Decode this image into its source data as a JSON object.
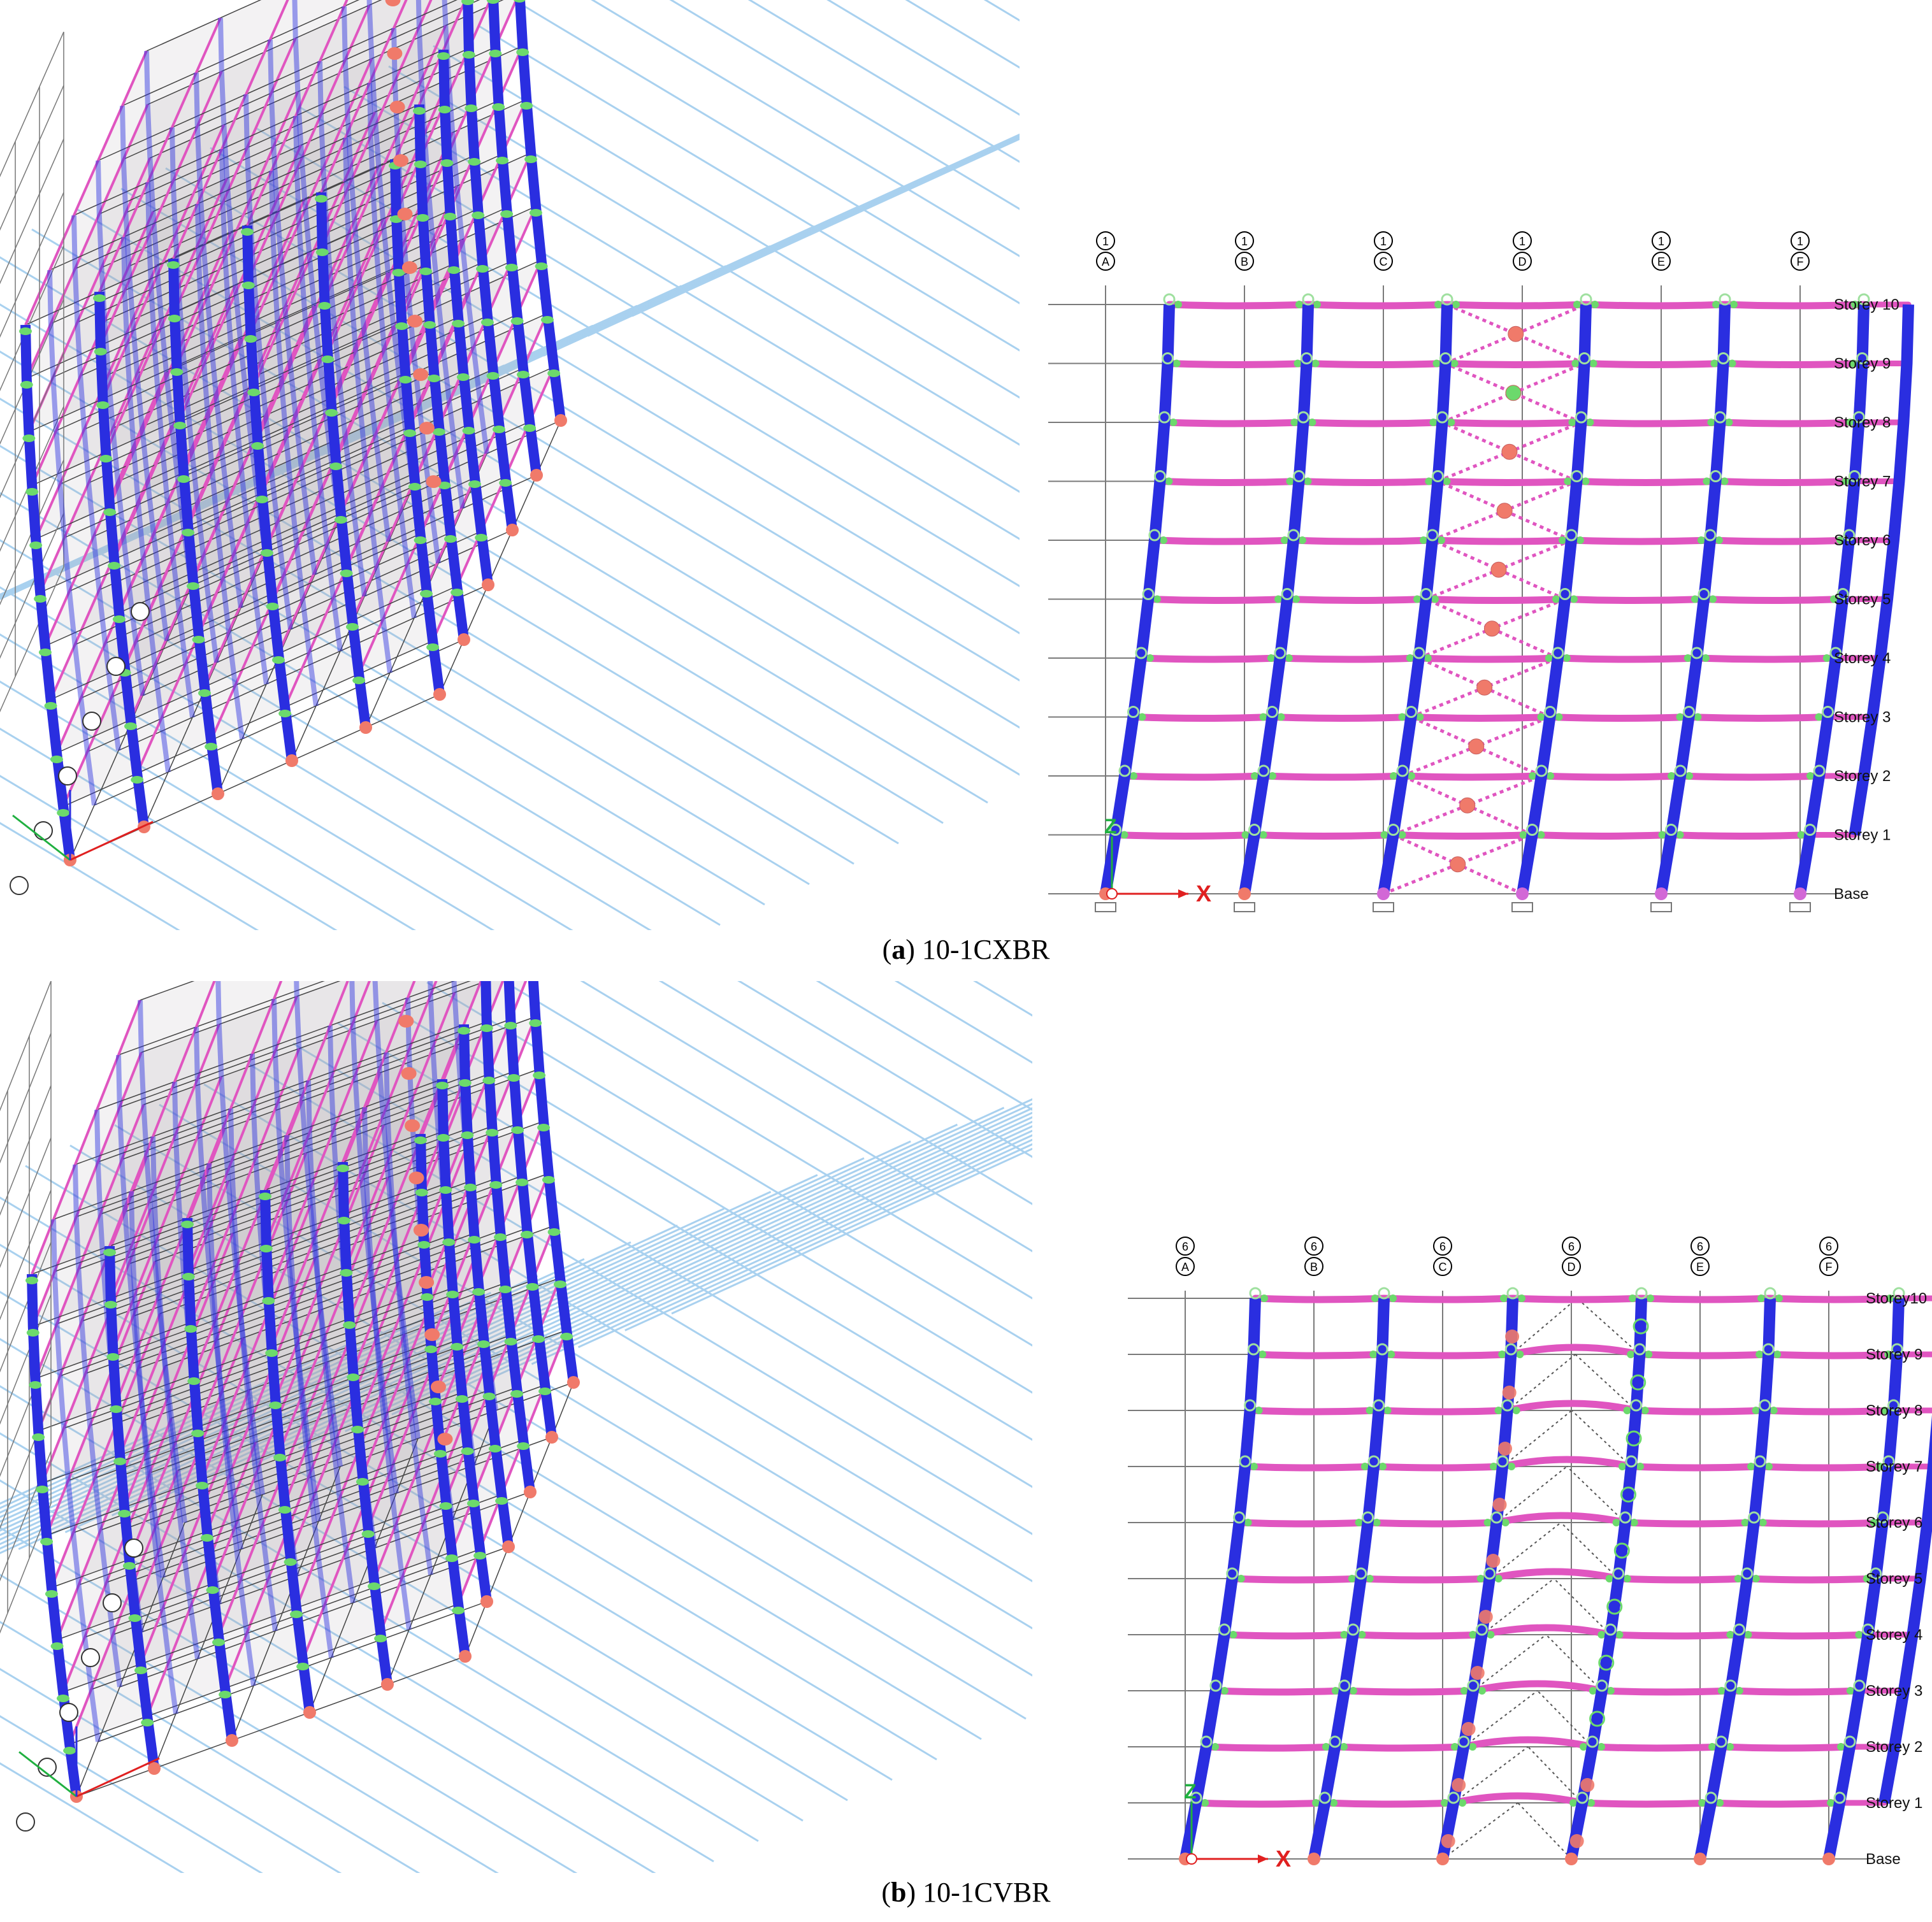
{
  "figures": [
    {
      "id": "a",
      "label": "a",
      "caption": "10-1CXBR",
      "bracing": "x",
      "grid_line_number": "1",
      "grid_letters": [
        "A",
        "B",
        "C",
        "D",
        "E",
        "F"
      ],
      "storey_labels": [
        "Storey 10",
        "Storey 9",
        "Storey 8",
        "Storey 7",
        "Storey 6",
        "Storey 5",
        "Storey 4",
        "Storey 3",
        "Storey 2",
        "Storey 1",
        "Base"
      ],
      "axis_z": "Z",
      "axis_x": "X"
    },
    {
      "id": "b",
      "label": "b",
      "caption": "10-1CVBR",
      "bracing": "v",
      "grid_line_number": "6",
      "grid_letters": [
        "A",
        "B",
        "C",
        "D",
        "E",
        "F"
      ],
      "storey_labels": [
        "Storey10",
        "Storey 9",
        "Storey 8",
        "Storey 7",
        "Storey 6",
        "Storey 5",
        "Storey 4",
        "Storey 3",
        "Storey 2",
        "Storey 1",
        "Base"
      ],
      "axis_z": "Z",
      "axis_x": "X"
    }
  ],
  "colors": {
    "column": "#2a2ee0",
    "beam": "#e055c0",
    "hinge_ok": "#6cd96c",
    "hinge_fail": "#f07a6a",
    "frame_line": "#555555",
    "ground_grid": "#a9d1ef",
    "slab": "#a8a4a8"
  }
}
